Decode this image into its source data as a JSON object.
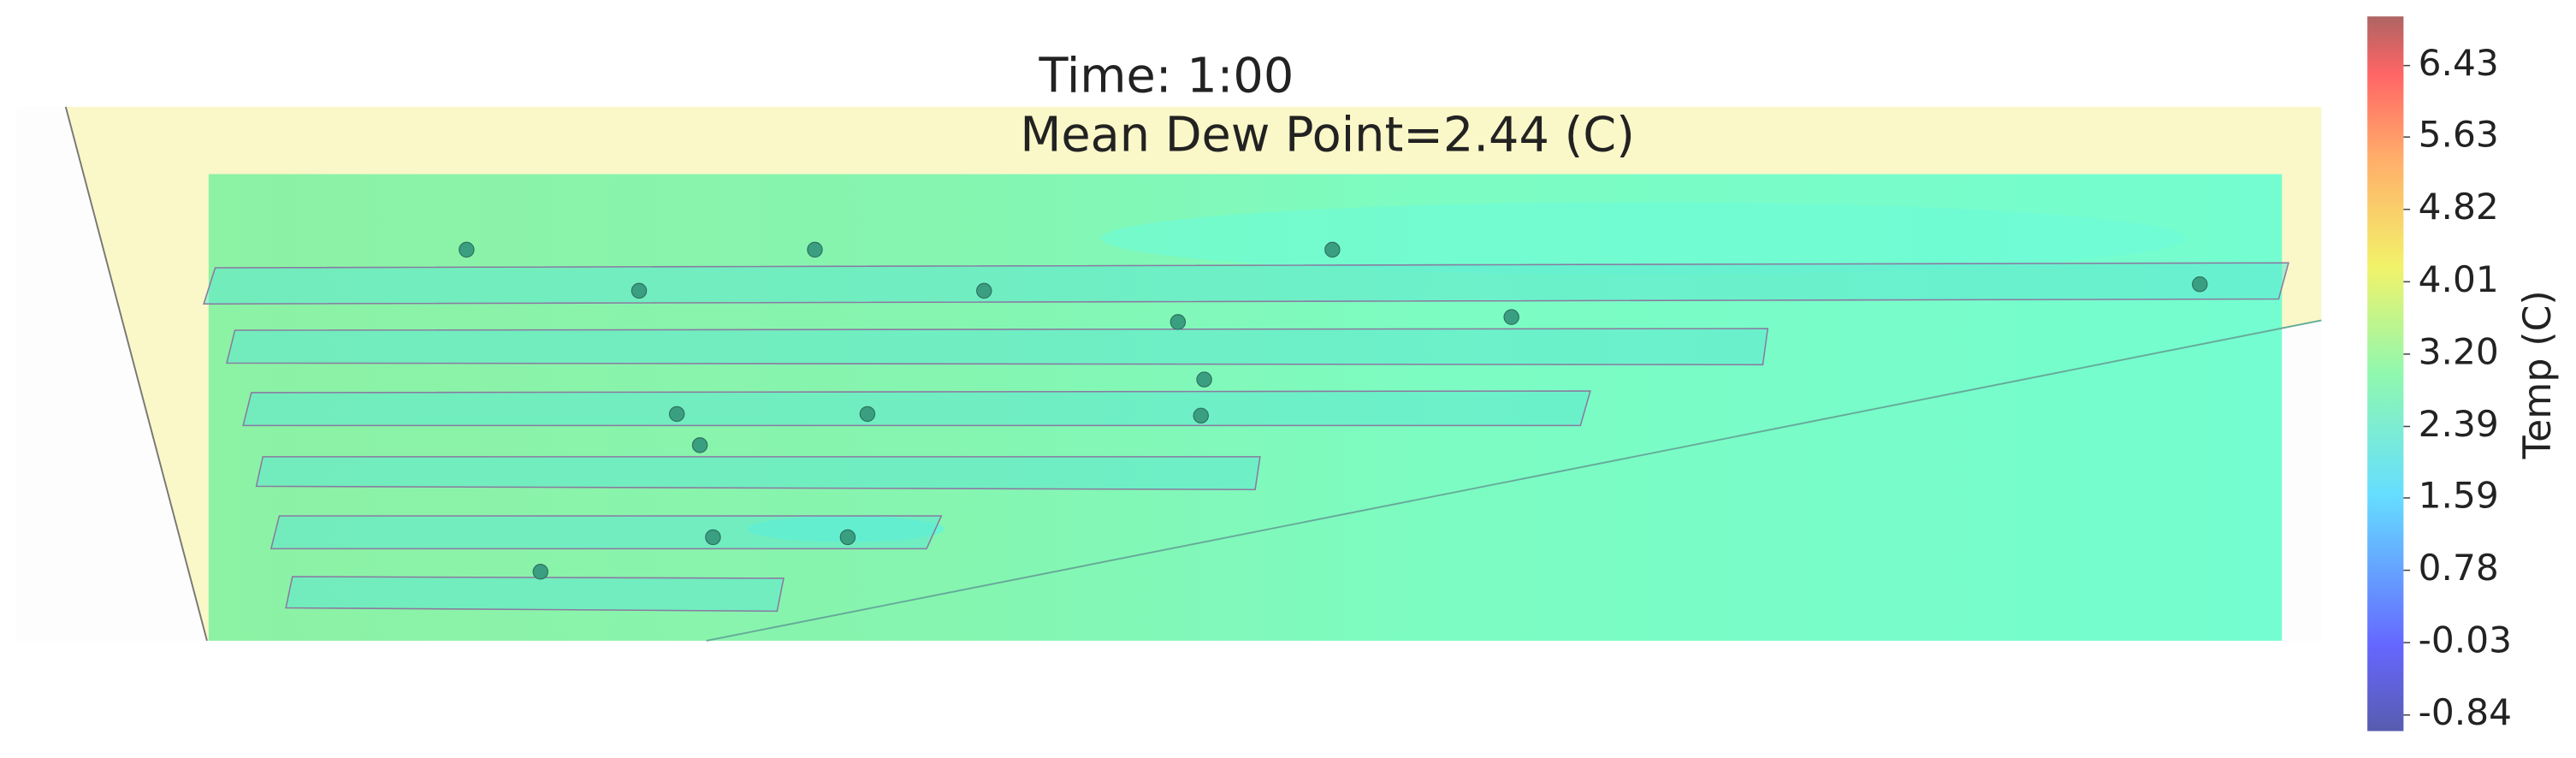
{
  "chart_data": {
    "type": "contour",
    "title": "Time: 1:00",
    "subtitle": "Mean Dew Point=2.44 (C)",
    "colorbar_label": "Temp (C)",
    "clim": [
      -1.02,
      6.98
    ],
    "cticks": [
      -0.84,
      -0.03,
      0.78,
      1.59,
      2.39,
      {
        "value": 3.2,
        "label": "3.20"
      },
      4.01,
      4.82,
      5.63,
      6.43
    ]
  }
}
